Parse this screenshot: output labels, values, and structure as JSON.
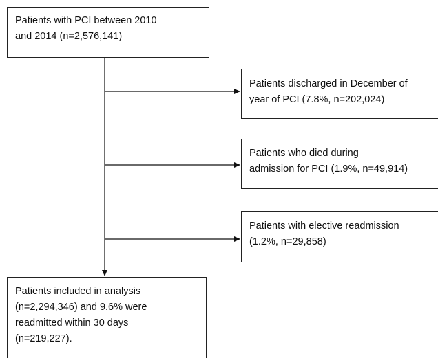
{
  "nodes": [
    {
      "lines": [
        "Patients with PCI between 2010",
        "and 2014 (n=2,576,141)"
      ]
    },
    {
      "lines": [
        "Patients discharged in December of",
        "year of PCI (7.8%, n=202,024)"
      ]
    },
    {
      "lines": [
        "Patients who died during",
        "admission for PCI (1.9%, n=49,914)"
      ]
    },
    {
      "lines": [
        "Patients with elective readmission",
        "(1.2%, n=29,858)"
      ]
    },
    {
      "lines": [
        "Patients included in analysis",
        "(n=2,294,346) and 9.6% were",
        "readmitted within 30 days",
        "(n=219,227)."
      ]
    }
  ]
}
